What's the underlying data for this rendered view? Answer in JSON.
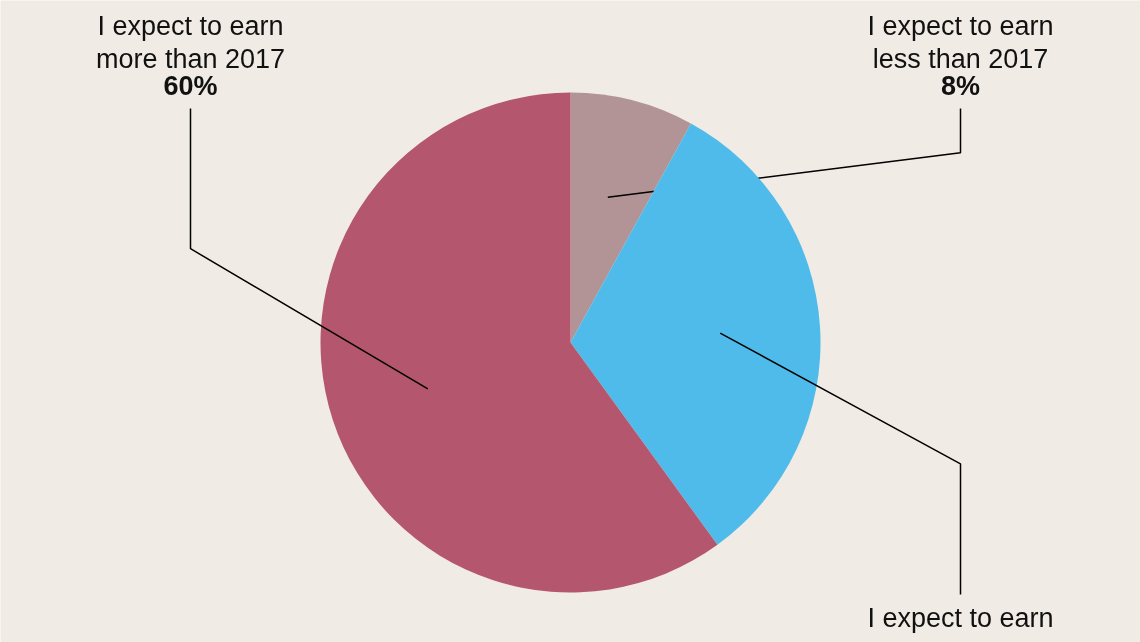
{
  "chart_data": {
    "type": "pie",
    "categories": [
      "I expect to earn less than 2017",
      "I expect to earn",
      "I expect to earn more than 2017"
    ],
    "values": [
      8,
      32,
      60
    ],
    "colors": [
      "#b29396",
      "#4fbbea",
      "#b5566f"
    ],
    "value_labels": [
      "8%",
      null,
      "60%"
    ]
  }
}
